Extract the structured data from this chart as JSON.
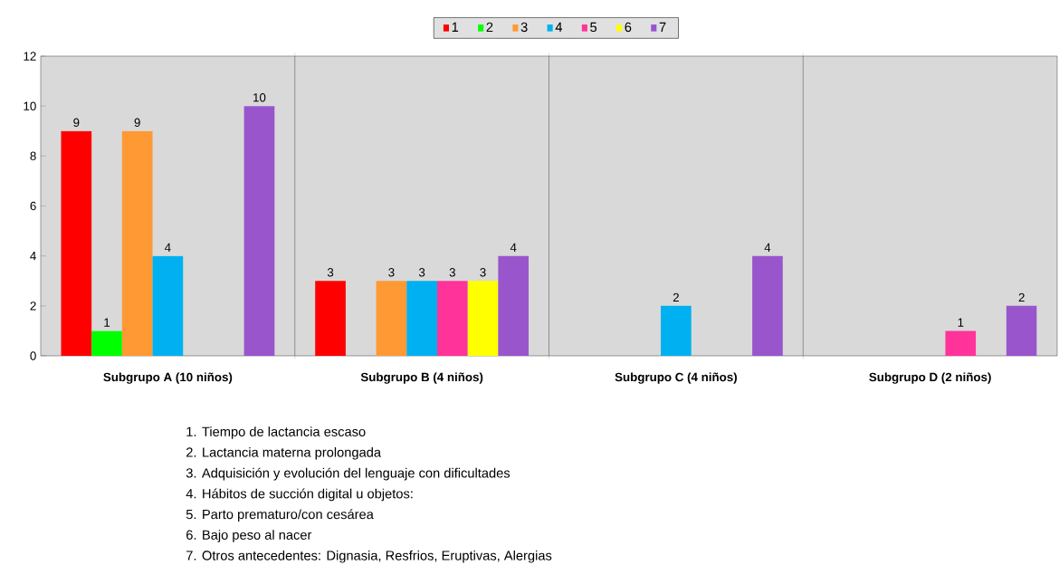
{
  "chart_data": {
    "type": "bar",
    "categories": [
      "Subgrupo A (10 niños)",
      "Subgrupo B (4 niños)",
      "Subgrupo C (4 niños)",
      "Subgrupo D (2 niños)"
    ],
    "series": [
      {
        "name": "1",
        "color": "#ff0000",
        "values": [
          9,
          3,
          null,
          null
        ]
      },
      {
        "name": "2",
        "color": "#00ff00",
        "values": [
          1,
          null,
          null,
          null
        ]
      },
      {
        "name": "3",
        "color": "#ff9933",
        "values": [
          9,
          3,
          null,
          null
        ]
      },
      {
        "name": "4",
        "color": "#00b0f0",
        "values": [
          4,
          3,
          2,
          null
        ]
      },
      {
        "name": "5",
        "color": "#ff3399",
        "values": [
          null,
          3,
          null,
          1
        ]
      },
      {
        "name": "6",
        "color": "#ffff00",
        "values": [
          null,
          3,
          null,
          null
        ]
      },
      {
        "name": "7",
        "color": "#9955cc",
        "values": [
          10,
          4,
          4,
          2
        ]
      }
    ],
    "ylim": [
      0,
      12
    ],
    "yticks": [
      0,
      2,
      4,
      6,
      8,
      10,
      12
    ],
    "data_labels": true,
    "legend": "top",
    "annotations": [
      "1.   Tiempo de lactancia escaso",
      "2.   Lactancia materna prolongada",
      "3.   Adquisición y evolución del lenguaje con dificultades",
      "4.   Hábitos de succión digital u objetos:",
      "5.   Parto prematuro/con cesárea",
      "6.   Bajo peso al nacer",
      "7.   Otros antecedentes: Dignasia, Resfrios, Eruptivas, Alergias"
    ]
  }
}
